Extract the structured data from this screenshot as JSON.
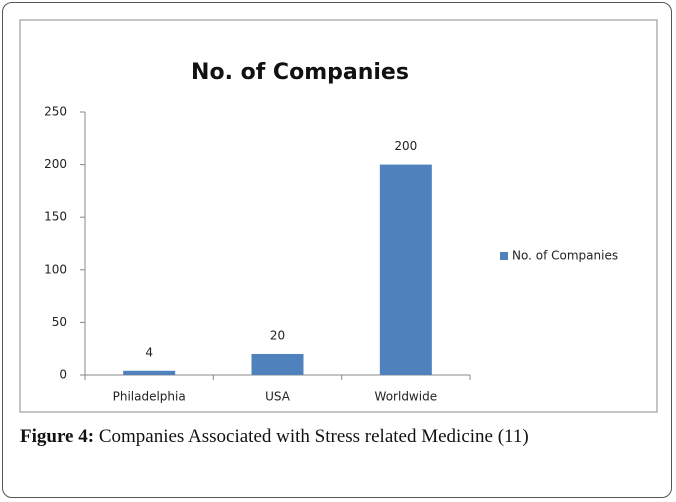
{
  "chart_data": {
    "type": "bar",
    "title": "No. of Companies",
    "categories": [
      "Philadelphia",
      "USA",
      "Worldwide"
    ],
    "series": [
      {
        "name": "No. of Companies",
        "color": "#4f81bd",
        "values": [
          4,
          20,
          200
        ]
      }
    ],
    "ylim": [
      0,
      250
    ],
    "yticks": [
      0,
      50,
      100,
      150,
      200,
      250
    ],
    "grid": false,
    "legend": "right"
  },
  "caption": {
    "label": "Figure 4:",
    "text": "Companies Associated with Stress related Medicine (11)"
  }
}
